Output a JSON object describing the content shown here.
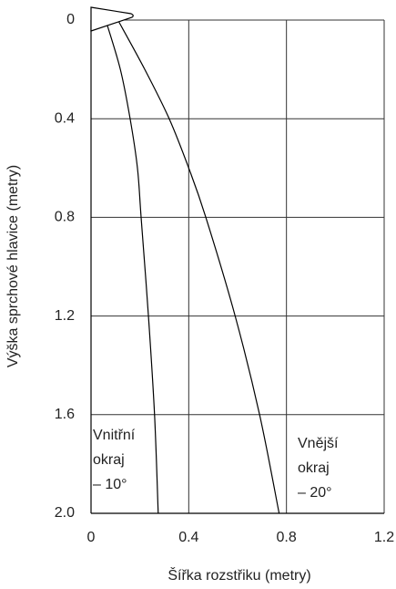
{
  "chart_data": {
    "type": "line",
    "xlabel": "Šířka rozstřiku (metry)",
    "ylabel": "Výška sprchové hlavice (metry)",
    "xlim": [
      0,
      1.2
    ],
    "xticks": [
      0,
      0.4,
      0.8,
      1.2
    ],
    "ylim": [
      2,
      0
    ],
    "yticks": [
      0,
      0.4,
      0.8,
      1.2,
      1.6,
      {
        "value": 2,
        "label": "2.0"
      }
    ],
    "grid": true,
    "series": [
      {
        "color": "#000000",
        "x": [
          0.06,
          0.12,
          0.16,
          0.19,
          0.205,
          0.235,
          0.26,
          0.275
        ],
        "values": [
          0,
          0.2,
          0.4,
          0.6,
          0.8,
          1.2,
          1.6,
          2.0
        ]
      },
      {
        "color": "#000000",
        "x": [
          0.11,
          0.22,
          0.32,
          0.4,
          0.47,
          0.59,
          0.69,
          0.77
        ],
        "values": [
          0,
          0.2,
          0.4,
          0.6,
          0.8,
          1.2,
          1.6,
          2.0
        ]
      }
    ],
    "annotations": [
      [
        "Vnitřní",
        "okraj",
        "– 10°"
      ],
      [
        "Vnější",
        "okraj",
        "– 20°"
      ]
    ]
  }
}
